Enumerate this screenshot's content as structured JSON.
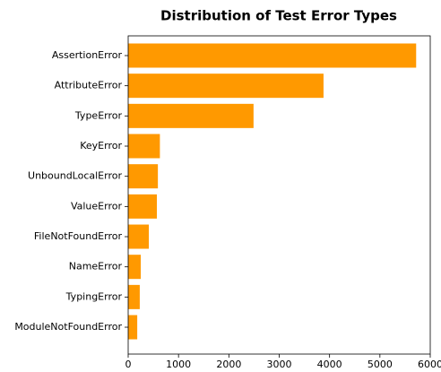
{
  "chart_data": {
    "type": "barh",
    "title": "Distribution of Test Error Types",
    "categories": [
      "AssertionError",
      "AttributeError",
      "TypeError",
      "KeyError",
      "UnboundLocalError",
      "ValueError",
      "FileNotFoundError",
      "NameError",
      "TypingError",
      "ModuleNotFoundError"
    ],
    "values": [
      5720,
      3880,
      2490,
      630,
      590,
      570,
      410,
      250,
      230,
      180
    ],
    "color": "#ff9900",
    "xlim": [
      0,
      6000
    ],
    "xticks": [
      0,
      1000,
      2000,
      3000,
      4000,
      5000,
      6000
    ],
    "grid": false
  }
}
